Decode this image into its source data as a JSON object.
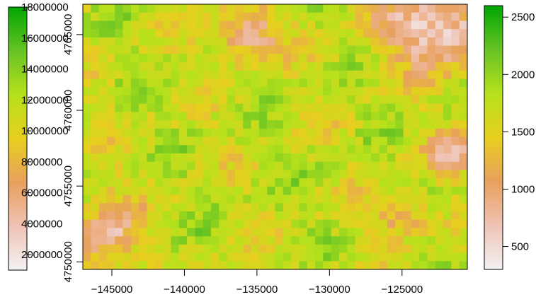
{
  "chart_data": {
    "type": "heatmap",
    "title": "",
    "xlabel": "",
    "ylabel": "",
    "x_ticks": [
      "−145000",
      "−140000",
      "−135000",
      "−130000",
      "−125000"
    ],
    "x_tick_values": [
      -145000,
      -140000,
      -135000,
      -130000,
      -125000
    ],
    "xlim": [
      -147000,
      -120500
    ],
    "y_ticks": [
      "4750000",
      "4755000",
      "4760000",
      "4765000"
    ],
    "y_tick_values": [
      4750000,
      4755000,
      4760000,
      4765000
    ],
    "ylim": [
      4749500,
      4767000
    ],
    "grid": false,
    "colorbar_left": {
      "labels": [
        "2000000",
        "4000000",
        "6000000",
        "8000000",
        "10000000",
        "12000000",
        "14000000",
        "16000000",
        "18000000"
      ],
      "values": [
        2000000,
        4000000,
        6000000,
        8000000,
        10000000,
        12000000,
        14000000,
        16000000,
        18000000
      ],
      "range": [
        1000000,
        18000000
      ]
    },
    "colorbar_right": {
      "labels": [
        "500",
        "1000",
        "1500",
        "2000",
        "2500"
      ],
      "values": [
        500,
        1000,
        1500,
        2000,
        2500
      ],
      "range": [
        300,
        2600
      ]
    },
    "palette": [
      "#f2f2f2",
      "#efc3b5",
      "#e8a05e",
      "#e7cf1e",
      "#b6e11c",
      "#67c324",
      "#00a600"
    ],
    "grid_size": [
      48,
      32
    ]
  }
}
